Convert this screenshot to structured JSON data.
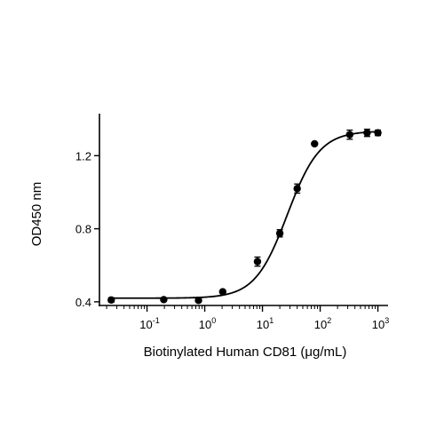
{
  "chart_data": {
    "type": "scatter",
    "xlabel": "Biotinylated Human CD81 (μg/mL)",
    "ylabel": "OD450 nm",
    "x_scale": "log10",
    "xlim": [
      0.015,
      1500
    ],
    "ylim": [
      0.38,
      1.43
    ],
    "x_ticks": [
      {
        "value": 0.1,
        "base": "10",
        "exp": "-1"
      },
      {
        "value": 1,
        "base": "10",
        "exp": "0"
      },
      {
        "value": 10,
        "base": "10",
        "exp": "1"
      },
      {
        "value": 100,
        "base": "10",
        "exp": "2"
      },
      {
        "value": 1000,
        "base": "10",
        "exp": "3"
      }
    ],
    "y_ticks": [
      {
        "value": 0.4,
        "label": "0.4"
      },
      {
        "value": 0.8,
        "label": "0.8"
      },
      {
        "value": 1.2,
        "label": "1.2"
      }
    ],
    "points": [
      {
        "x": 0.024,
        "y": 0.41,
        "err": 0.012
      },
      {
        "x": 0.195,
        "y": 0.412,
        "err": 0.005
      },
      {
        "x": 0.78,
        "y": 0.408,
        "err": 0.005
      },
      {
        "x": 2.05,
        "y": 0.455,
        "err": 0.005
      },
      {
        "x": 8.2,
        "y": 0.62,
        "err": 0.025
      },
      {
        "x": 20,
        "y": 0.775,
        "err": 0.02
      },
      {
        "x": 40,
        "y": 1.02,
        "err": 0.025
      },
      {
        "x": 80,
        "y": 1.265,
        "err": 0.005
      },
      {
        "x": 325,
        "y": 1.315,
        "err": 0.025
      },
      {
        "x": 650,
        "y": 1.325,
        "err": 0.02
      },
      {
        "x": 1000,
        "y": 1.325,
        "err": 0.015
      }
    ],
    "fit": {
      "model": "4PL",
      "bottom": 0.42,
      "top": 1.335,
      "ec50": 27,
      "hill": 1.55
    },
    "grid": false
  }
}
